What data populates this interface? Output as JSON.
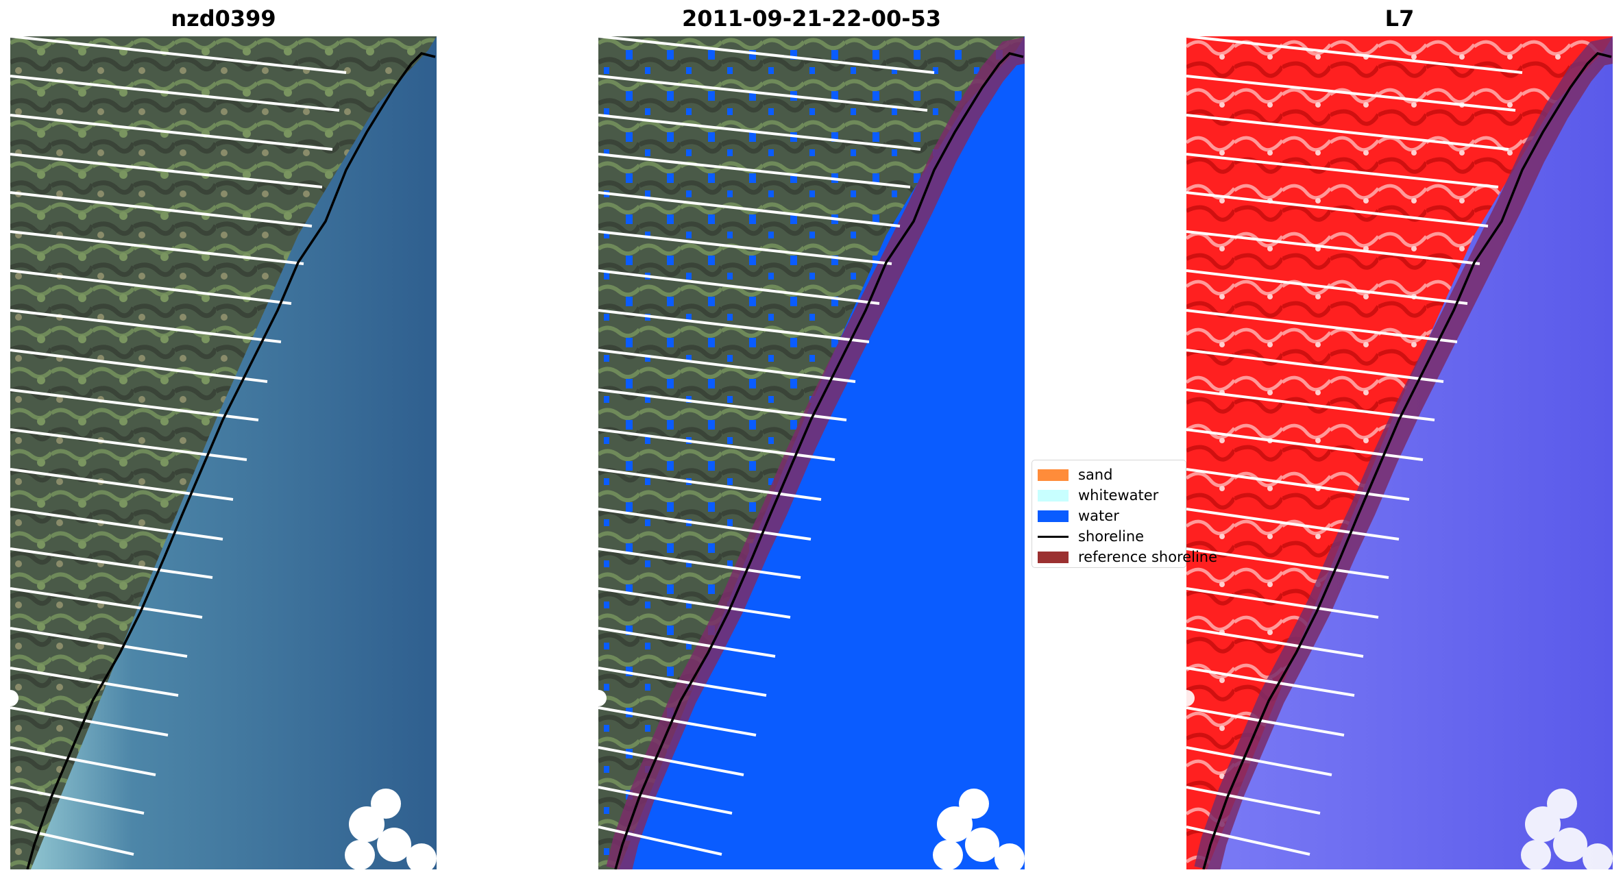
{
  "panels": [
    {
      "title": "nzd0399"
    },
    {
      "title": "2011-09-21-22-00-53"
    },
    {
      "title": "L7"
    }
  ],
  "legend": {
    "items": [
      {
        "label": "sand",
        "color": "#ff8c3a"
      },
      {
        "label": "whitewater",
        "color": "#c8ffff"
      },
      {
        "label": "water",
        "color": "#0a5cff"
      },
      {
        "label": "shoreline",
        "color": "#000000"
      },
      {
        "label": "reference shoreline",
        "color": "#9b3030"
      }
    ]
  },
  "colors": {
    "land_rgb": "#4d5e4a",
    "ocean_rgb": "#3f6f9a",
    "near_shore": "#7fb6c8",
    "water_class": "#0a5cff",
    "reference_buffer": "#7a2d6a",
    "l7_land": "#ff2a2a",
    "l7_water": "#6a6af0",
    "cloud": "#ffffff"
  }
}
